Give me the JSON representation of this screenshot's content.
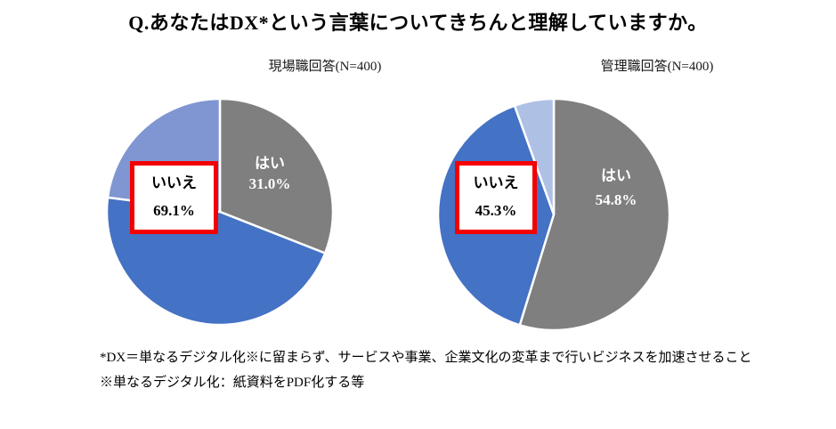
{
  "page_title": "Q.あなたはDX*という言葉についてきちんと理解していますか。",
  "footnotes": [
    "*DX＝単なるデジタル化※に留まらず、サービスや事業、企業文化の変革まで行いビジネスを加速させること",
    "※単なるデジタル化：紙資料をPDF化する等"
  ],
  "colors": {
    "yes_gray": "#7F7F7F",
    "no_dark_blue": "#4472C4",
    "no_light_blue_left": "#8096D2",
    "no_light_blue_right": "#AFC0E5",
    "callout_border_red": "#F40000",
    "slice_divider": "#FFFFFF"
  },
  "chart_data": [
    {
      "type": "pie",
      "title": "現場職回答(N=400)",
      "sample_size": 400,
      "start_angle": "12-oclock",
      "direction": "clockwise",
      "yes_total_pct": 31.0,
      "no_total_pct": 69.1,
      "segments": [
        {
          "label": "はい",
          "value_pct": 31.0,
          "color": "#7F7F7F"
        },
        {
          "label": "いいえ (dark-blue part, est.)",
          "value_pct": 46.1,
          "color": "#4472C4"
        },
        {
          "label": "いいえ (light-blue part, est.)",
          "value_pct": 23.0,
          "color": "#8096D2"
        }
      ],
      "callouts": {
        "yes_label": "はい",
        "yes_value": "31.0%",
        "no_label": "いいえ",
        "no_value": "69.1%"
      }
    },
    {
      "type": "pie",
      "title": "管理職回答(N=400)",
      "sample_size": 400,
      "start_angle": "12-oclock",
      "direction": "clockwise",
      "yes_total_pct": 54.8,
      "no_total_pct": 45.3,
      "segments": [
        {
          "label": "はい",
          "value_pct": 54.8,
          "color": "#7F7F7F"
        },
        {
          "label": "いいえ (dark-blue part, est.)",
          "value_pct": 39.8,
          "color": "#4472C4"
        },
        {
          "label": "いいえ (light-blue part, est.)",
          "value_pct": 5.5,
          "color": "#AFC0E5"
        }
      ],
      "callouts": {
        "yes_label": "はい",
        "yes_value": "54.8%",
        "no_label": "いいえ",
        "no_value": "45.3%"
      }
    }
  ]
}
